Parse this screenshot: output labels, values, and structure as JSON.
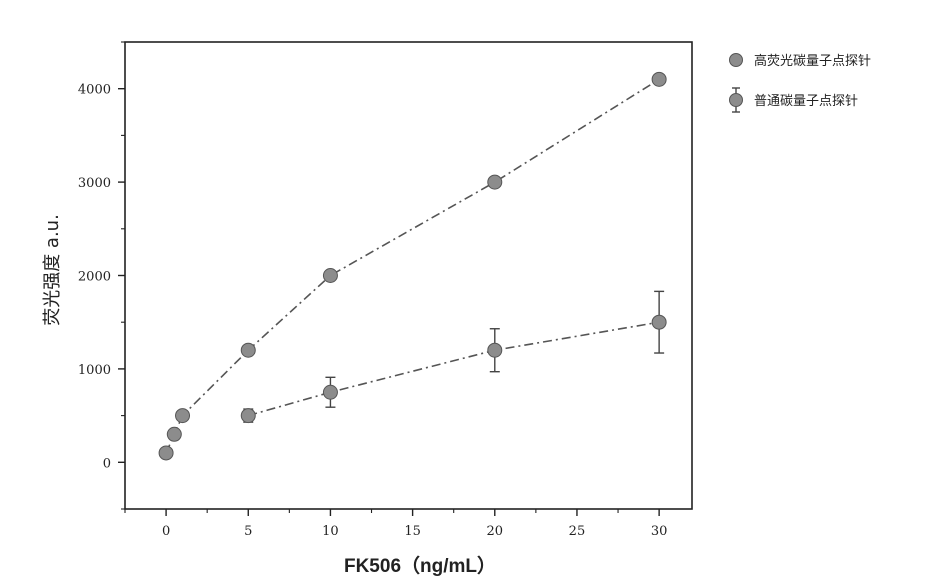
{
  "chart_data": {
    "type": "line",
    "title": "",
    "xlabel": "FK506（ng/mL）",
    "ylabel": "荧光强度 a.u.",
    "xlim": [
      -2.5,
      32
    ],
    "ylim": [
      -500,
      4500
    ],
    "x_ticks": [
      0,
      5,
      10,
      15,
      20,
      25,
      30
    ],
    "y_ticks": [
      0,
      1000,
      2000,
      3000,
      4000
    ],
    "grid": false,
    "legend_position": "outside-top-right",
    "series": [
      {
        "name": "高荧光碳量子点探针",
        "marker": "circle",
        "line_style": "dash-dot",
        "color": "#8c8c8c",
        "x": [
          0,
          0.5,
          1,
          5,
          10,
          20,
          30
        ],
        "y": [
          100,
          300,
          500,
          1200,
          2000,
          3000,
          4100
        ],
        "error": null
      },
      {
        "name": "普通碳量子点探针",
        "marker": "circle",
        "line_style": "dash-dot",
        "color": "#8c8c8c",
        "x": [
          5,
          10,
          20,
          30
        ],
        "y": [
          500,
          750,
          1200,
          1500
        ],
        "error": [
          70,
          160,
          230,
          330
        ]
      }
    ]
  }
}
